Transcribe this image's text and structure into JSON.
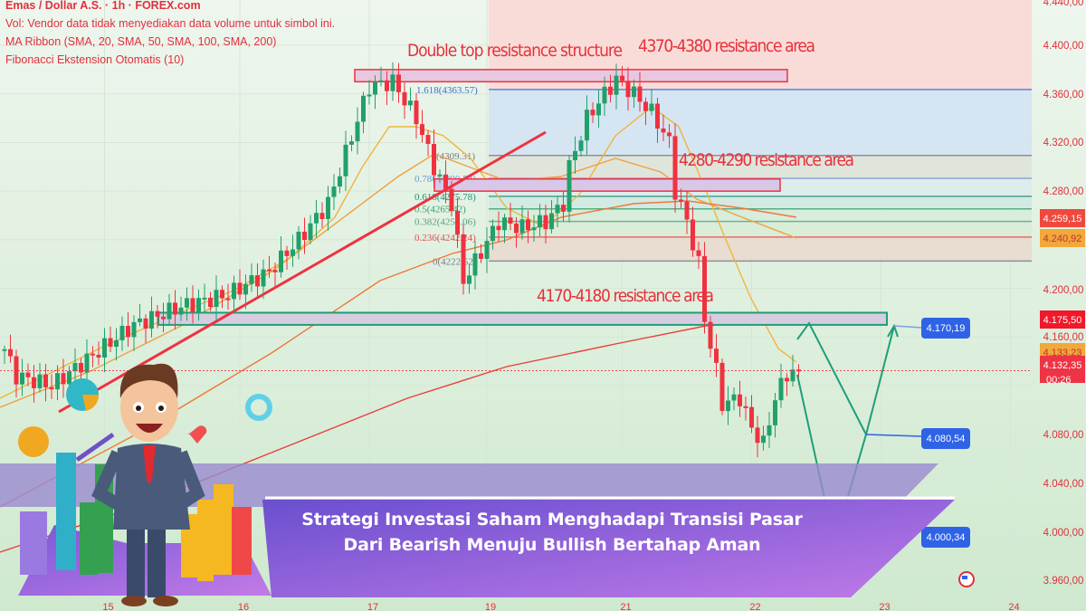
{
  "legend": {
    "symbol": "Emas / Dollar A.S. · 1h · FOREX.com",
    "volume_note": "Vol: Vendor data tidak menyediakan data volume untuk simbol ini.",
    "ma_ribbon": "MA Ribbon (SMA, 20, SMA, 50, SMA, 100, SMA, 200)",
    "fib": "Fibonacci Ekstension Otomatis (10)"
  },
  "banner": {
    "line1": "Strategi Investasi Saham Menghadapi Transisi Pasar",
    "line2": "Dari Bearish Menuju Bullish Bertahap Aman"
  },
  "colors": {
    "up": "#22a06b",
    "down": "#f0313f",
    "trendline": "#f0313f",
    "projection": "#1f9e78",
    "label_blue": "#2f63e6",
    "axis_text": "#e0303c",
    "banner": "#8a5ad8"
  },
  "chart_data": {
    "type": "candlestick",
    "title": "Emas / Dollar A.S. · 1h · FOREX.com",
    "ylim": [
      3950,
      4445
    ],
    "y_ticks": [
      "4.440,00",
      "4.400,00",
      "4.360,00",
      "4.320,00",
      "4.280,00",
      "4.200,00",
      "4.160,00",
      "4.080,00",
      "4.040,00",
      "4.000,00",
      "3.960,00"
    ],
    "y_tick_values": [
      4440,
      4400,
      4360,
      4320,
      4280,
      4200,
      4160,
      4080,
      4040,
      4000,
      3960
    ],
    "x_ticks": [
      {
        "label": "15",
        "bar": 17
      },
      {
        "label": "16",
        "bar": 40
      },
      {
        "label": "17",
        "bar": 62
      },
      {
        "label": "19",
        "bar": 82
      },
      {
        "label": "21",
        "bar": 105
      },
      {
        "label": "22",
        "bar": 127
      },
      {
        "label": "23",
        "bar": 149
      },
      {
        "label": "24",
        "bar": 171
      }
    ],
    "price_path": [
      [
        0,
        4150
      ],
      [
        2,
        4128
      ],
      [
        8,
        4120
      ],
      [
        15,
        4145
      ],
      [
        22,
        4170
      ],
      [
        30,
        4185
      ],
      [
        38,
        4195
      ],
      [
        45,
        4214
      ],
      [
        50,
        4240
      ],
      [
        55,
        4270
      ],
      [
        59,
        4325
      ],
      [
        62,
        4366
      ],
      [
        66,
        4370
      ],
      [
        70,
        4340
      ],
      [
        73,
        4300
      ],
      [
        76,
        4270
      ],
      [
        78,
        4206
      ],
      [
        81,
        4230
      ],
      [
        84,
        4255
      ],
      [
        88,
        4250
      ],
      [
        92,
        4255
      ],
      [
        95,
        4270
      ],
      [
        96,
        4300
      ],
      [
        99,
        4340
      ],
      [
        102,
        4360
      ],
      [
        104,
        4372
      ],
      [
        107,
        4360
      ],
      [
        110,
        4345
      ],
      [
        113,
        4320
      ],
      [
        114,
        4280
      ],
      [
        116,
        4255
      ],
      [
        118,
        4220
      ],
      [
        119,
        4175
      ],
      [
        121,
        4132
      ],
      [
        122,
        4105
      ],
      [
        125,
        4110
      ],
      [
        127,
        4085
      ],
      [
        129,
        4072
      ],
      [
        131,
        4110
      ],
      [
        133,
        4130
      ],
      [
        135,
        4132
      ]
    ],
    "price_labels": [
      {
        "value": "4.259,15",
        "color": "#f0483c"
      },
      {
        "value": "4.240,92",
        "color": "#f2a83a"
      },
      {
        "value": "4.175,50",
        "color": "#f0182a"
      },
      {
        "value": "4.133,23",
        "color": "#f2a83a"
      },
      {
        "value": "4.132,35",
        "color": "#ee3344",
        "countdown": "00:26"
      }
    ],
    "fib_levels": [
      {
        "label": "1.618(4363.57)",
        "price": 4363.57,
        "color": "#3a6fd8"
      },
      {
        "label": "(4309.31)",
        "price": 4309.31,
        "color": "#7a7a8a"
      },
      {
        "label": "0.786(4290.53)",
        "price": 4290.53,
        "color": "#6a9ad8"
      },
      {
        "label": "0.618(4275.78)",
        "price": 4275.78,
        "color": "#20907a"
      },
      {
        "label": "0.5(4265.42)",
        "price": 4265.42,
        "color": "#3aa070"
      },
      {
        "label": "0.382(4255.06)",
        "price": 4255.06,
        "color": "#5aa080"
      },
      {
        "label": "0.236(4242.24)",
        "price": 4242.24,
        "color": "#e05050"
      },
      {
        "label": "0(4222.52)",
        "price": 4222.52,
        "color": "#7a7a8a"
      }
    ],
    "annotations": [
      {
        "text": "Double top resistance structure",
        "price": 4385
      },
      {
        "text": "4370-4380 resistance area",
        "low": 4370,
        "high": 4380
      },
      {
        "text": "4280-4290 resistance area",
        "low": 4280,
        "high": 4290
      },
      {
        "text": "4170-4180 resistance area",
        "low": 4170,
        "high": 4180
      }
    ],
    "projection_targets": [
      "4.170,19",
      "4.080,54",
      "4.000,34"
    ],
    "moving_averages": [
      "SMA 20",
      "SMA 50",
      "SMA 100",
      "SMA 200"
    ]
  }
}
